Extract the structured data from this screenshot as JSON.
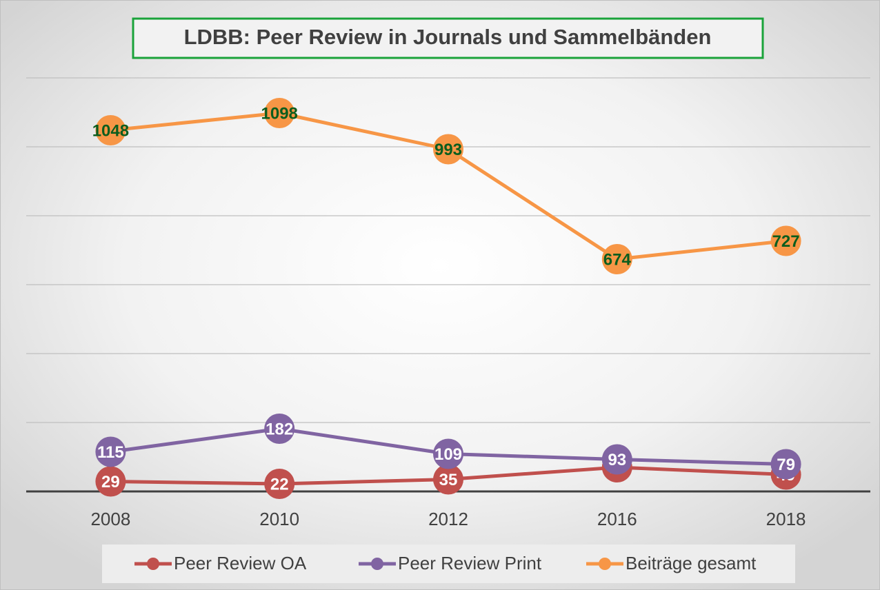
{
  "chart_data": {
    "type": "line",
    "title": "LDBB: Peer Review in Journals und Sammelbänden",
    "categories": [
      "2008",
      "2010",
      "2012",
      "2016",
      "2018"
    ],
    "series": [
      {
        "name": "Peer Review OA",
        "color": "#c0504d",
        "label_color": "#ffffff",
        "values": [
          29,
          22,
          35,
          70,
          49
        ]
      },
      {
        "name": "Peer Review Print",
        "color": "#8064a2",
        "label_color": "#ffffff",
        "values": [
          115,
          182,
          109,
          93,
          79
        ]
      },
      {
        "name": "Beiträge gesamt",
        "color": "#f79646",
        "label_color": "#0b5d1e",
        "values": [
          1048,
          1098,
          993,
          674,
          727
        ]
      }
    ],
    "ylim": [
      0,
      1200
    ],
    "yticks": [
      0,
      200,
      400,
      600,
      800,
      1000,
      1200
    ],
    "grid": true,
    "legend": "bottom"
  }
}
